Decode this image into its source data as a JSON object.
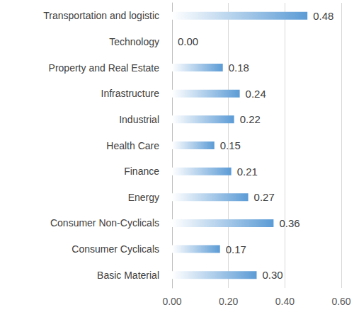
{
  "chart_data": {
    "type": "bar",
    "orientation": "horizontal",
    "categories": [
      "Transportation and logistic",
      "Technology",
      "Property and Real Estate",
      "Infrastructure",
      "Industrial",
      "Health Care",
      "Finance",
      "Energy",
      "Consumer Non-Cyclicals",
      "Consumer Cyclicals",
      "Basic Material"
    ],
    "values": [
      0.48,
      0.0,
      0.18,
      0.24,
      0.22,
      0.15,
      0.21,
      0.27,
      0.36,
      0.17,
      0.3
    ],
    "value_labels": [
      "0.48",
      "0.00",
      "0.18",
      "0.24",
      "0.22",
      "0.15",
      "0.21",
      "0.27",
      "0.36",
      "0.17",
      "0.30"
    ],
    "color": "#5b9bd5",
    "xlim": [
      0,
      0.6
    ],
    "xticks": [
      {
        "value": 0,
        "label": "0.00"
      },
      {
        "value": 0.2,
        "label": "0.20"
      },
      {
        "value": 0.4,
        "label": "0.40"
      },
      {
        "value": 0.6,
        "label": "0.60"
      }
    ],
    "grid": true,
    "data_labels": true
  }
}
